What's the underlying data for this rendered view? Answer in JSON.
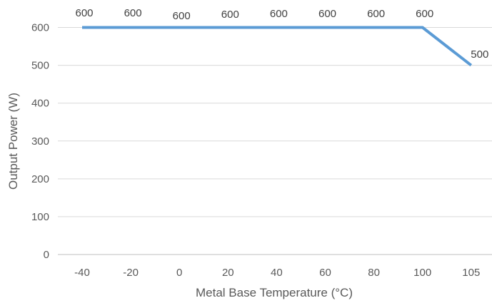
{
  "chart_data": {
    "type": "line",
    "categories": [
      "-40",
      "-20",
      "0",
      "20",
      "40",
      "60",
      "80",
      "100",
      "105"
    ],
    "series": [
      {
        "values": [
          600,
          600,
          600,
          600,
          600,
          600,
          600,
          600,
          500
        ],
        "data_labels": [
          "600",
          "600",
          "600",
          "600",
          "600",
          "600",
          "600",
          "600",
          "500"
        ],
        "color": "#5b9bd5"
      }
    ],
    "xlabel": "Metal Base Temperature (°C)",
    "ylabel": "Output Power (W)",
    "ylim": [
      0,
      600
    ],
    "yticks": [
      "0",
      "100",
      "200",
      "300",
      "400",
      "500",
      "600"
    ],
    "grid": true,
    "legend": "none",
    "colors": {
      "gridline": "#d9d9d9",
      "axis": "#bfbfbf",
      "tick_text": "#595959",
      "label_text": "#404040"
    }
  }
}
